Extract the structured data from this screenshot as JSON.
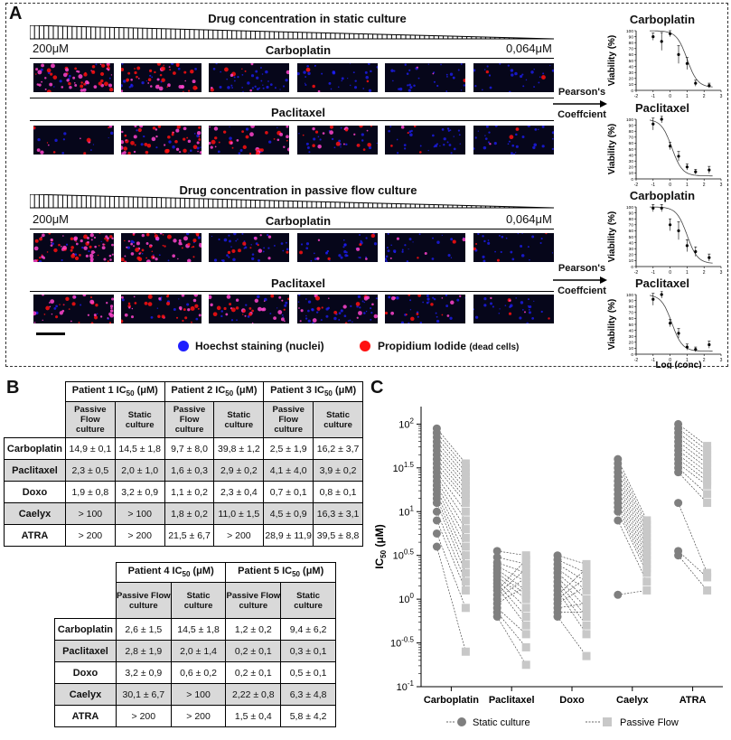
{
  "panel_a": {
    "letter": "A",
    "static_title": "Drug concentration in static culture",
    "flow_title": "Drug concentration in passive flow culture",
    "conc_high": "200μM",
    "conc_low": "0,064μM",
    "drug1": "Carboplatin",
    "drug2": "Paclitaxel",
    "arrow_label_1": "Pearson's",
    "arrow_label_2": "Coeffcient",
    "legend_hoechst": "Hoechst staining (nuclei)",
    "legend_pi_main": "Propidium Iodide",
    "legend_pi_sub": "(dead cells)",
    "colors": {
      "hoechst": "#1f1fff",
      "pi": "#ff1010"
    }
  },
  "mini_charts": [
    {
      "title": "Carboplatin",
      "ylabel": "Viability (%)",
      "xlabel": "",
      "points": [
        [
          -1,
          90
        ],
        [
          -0.5,
          82
        ],
        [
          0,
          95
        ],
        [
          0.5,
          60
        ],
        [
          1,
          45
        ],
        [
          1.5,
          12
        ],
        [
          2.3,
          8
        ]
      ],
      "errs": [
        6,
        15,
        5,
        15,
        10,
        5,
        4
      ],
      "ic50": 1.0
    },
    {
      "title": "Paclitaxel",
      "ylabel": "Viability (%)",
      "xlabel": "",
      "points": [
        [
          -1,
          92
        ],
        [
          -0.5,
          100
        ],
        [
          0,
          55
        ],
        [
          0.5,
          38
        ],
        [
          1,
          20
        ],
        [
          1.5,
          12
        ],
        [
          2.3,
          15
        ]
      ],
      "errs": [
        10,
        6,
        6,
        8,
        5,
        4,
        6
      ],
      "ic50": 0.1
    },
    {
      "title": "Carboplatin",
      "ylabel": "Viability (%)",
      "xlabel": "",
      "points": [
        [
          -1,
          98
        ],
        [
          -0.5,
          98
        ],
        [
          0,
          70
        ],
        [
          0.5,
          60
        ],
        [
          1,
          35
        ],
        [
          1.5,
          25
        ],
        [
          2.3,
          15
        ]
      ],
      "errs": [
        6,
        6,
        10,
        15,
        10,
        8,
        6
      ],
      "ic50": 1.0
    },
    {
      "title": "Paclitaxel",
      "ylabel": "Viability (%)",
      "xlabel": "Log (conc)",
      "points": [
        [
          -1,
          92
        ],
        [
          -0.5,
          100
        ],
        [
          0,
          52
        ],
        [
          0.5,
          35
        ],
        [
          1,
          12
        ],
        [
          1.5,
          8
        ],
        [
          2.3,
          16
        ]
      ],
      "errs": [
        10,
        6,
        6,
        8,
        5,
        4,
        6
      ],
      "ic50": 0.1
    }
  ],
  "mini_axis": {
    "yticks": [
      "0",
      "10",
      "20",
      "30",
      "40",
      "50",
      "60",
      "70",
      "80",
      "90",
      "100"
    ],
    "xticks": [
      "-2",
      "-1",
      "0",
      "1",
      "2",
      "3"
    ]
  },
  "panel_b": {
    "letter": "B",
    "sub_passive": "Passive Flow culture",
    "sub_static": "Static culture",
    "table1": {
      "headers": [
        "Patient 1 IC",
        "Patient 2 IC",
        "Patient 3 IC"
      ],
      "header_sub": "50",
      "header_unit": " (μM)",
      "rows": [
        {
          "drug": "Carboplatin",
          "cells": [
            "14,9 ± 0,1",
            "14,5 ± 1,8",
            "9,7 ± 8,0",
            "39,8 ± 1,2",
            "2,5 ± 1,9",
            "16,2 ± 3,7"
          ]
        },
        {
          "drug": "Paclitaxel",
          "cells": [
            "2,3 ± 0,5",
            "2,0 ± 1,0",
            "1,6 ± 0,3",
            "2,9 ± 0,2",
            "4,1 ± 4,0",
            "3,9 ± 0,2"
          ]
        },
        {
          "drug": "Doxo",
          "cells": [
            "1,9 ± 0,8",
            "3,2 ± 0,9",
            "1,1 ± 0,2",
            "2,3 ± 0,4",
            "0,7 ± 0,1",
            "0,8 ± 0,1"
          ]
        },
        {
          "drug": "Caelyx",
          "cells": [
            "> 100",
            "> 100",
            "1,8 ± 0,2",
            "11,0 ± 1,5",
            "4,5 ± 0,9",
            "16,3 ± 3,1"
          ]
        },
        {
          "drug": "ATRA",
          "cells": [
            "> 200",
            "> 200",
            "21,5 ± 6,7",
            "> 200",
            "28,9 ± 11,9",
            "39,5 ± 8,8"
          ]
        }
      ]
    },
    "table2": {
      "headers": [
        "Patient 4 IC",
        "Patient 5 IC"
      ],
      "rows": [
        {
          "drug": "Carboplatin",
          "cells": [
            "2,6 ± 1,5",
            "14,5 ± 1,8",
            "1,2 ± 0,2",
            "9,4 ± 6,2"
          ]
        },
        {
          "drug": "Paclitaxel",
          "cells": [
            "2,8 ± 1,9",
            "2,0 ± 1,4",
            "0,2 ± 0,1",
            "0,3 ± 0,1"
          ]
        },
        {
          "drug": "Doxo",
          "cells": [
            "3,2 ± 0,9",
            "0,6 ± 0,2",
            "0,2 ± 0,1",
            "0,5 ± 0,1"
          ]
        },
        {
          "drug": "Caelyx",
          "cells": [
            "30,1 ± 6,7",
            "> 100",
            "2,22 ± 0,8",
            "6,3 ± 4,8"
          ]
        },
        {
          "drug": "ATRA",
          "cells": [
            "> 200",
            "> 200",
            "1,5 ± 0,4",
            "5,8 ± 4,2"
          ]
        }
      ]
    }
  },
  "chart_data": {
    "type": "scatter",
    "letter": "C",
    "ylabel_main": "IC",
    "ylabel_sub": "50",
    "ylabel_unit": " (μM)",
    "yscale": "log",
    "ylim_log": [
      -1,
      2.2
    ],
    "ytick_base": "10",
    "yticks": [
      {
        "exp": "-1",
        "v": -1
      },
      {
        "exp": "-0.5",
        "v": -0.5
      },
      {
        "exp": "0",
        "v": 0
      },
      {
        "exp": "0.5",
        "v": 0.5
      },
      {
        "exp": "1",
        "v": 1
      },
      {
        "exp": "1.5",
        "v": 1.5
      },
      {
        "exp": "2",
        "v": 2
      }
    ],
    "categories": [
      "Carboplatin",
      "Paclitaxel",
      "Doxo",
      "Caelyx",
      "ATRA"
    ],
    "series": [
      {
        "name": "Static culture",
        "color": "#7f7f7f",
        "marker": "circle",
        "log_values": [
          [
            1.95,
            1.9,
            1.85,
            1.8,
            1.75,
            1.7,
            1.65,
            1.6,
            1.55,
            1.5,
            1.45,
            1.4,
            1.35,
            1.3,
            1.25,
            1.2,
            1.15,
            1.1,
            1.0,
            0.9,
            0.75,
            0.6
          ],
          [
            0.55,
            0.48,
            0.42,
            0.38,
            0.34,
            0.3,
            0.26,
            0.22,
            0.18,
            0.14,
            0.1,
            0.05,
            0.0,
            -0.05,
            -0.1,
            -0.15,
            -0.2
          ],
          [
            0.5,
            0.45,
            0.4,
            0.35,
            0.3,
            0.25,
            0.2,
            0.15,
            0.1,
            0.05,
            0.0,
            -0.05,
            -0.1,
            -0.15,
            -0.2
          ],
          [
            1.6,
            1.55,
            1.5,
            1.45,
            1.4,
            1.35,
            1.3,
            1.25,
            1.2,
            1.15,
            1.1,
            1.05,
            1.0,
            0.9,
            0.05
          ],
          [
            2.0,
            1.95,
            1.9,
            1.85,
            1.8,
            1.75,
            1.7,
            1.65,
            1.6,
            1.55,
            1.5,
            1.45,
            1.1,
            0.55,
            0.5
          ]
        ]
      },
      {
        "name": "Passive Flow",
        "color": "#c8c8c8",
        "marker": "square",
        "log_values": [
          [
            1.55,
            1.5,
            1.45,
            1.4,
            1.35,
            1.3,
            1.25,
            1.2,
            1.15,
            1.1,
            1.0,
            0.9,
            0.8,
            0.7,
            0.6,
            0.5,
            0.4,
            0.3,
            0.2,
            0.1,
            -0.1,
            -0.6
          ],
          [
            0.5,
            0.4,
            0.3,
            0.2,
            0.1,
            0.05,
            0.0,
            -0.1,
            -0.2,
            -0.3,
            0.45,
            0.35,
            0.25,
            0.15,
            -0.4,
            -0.55,
            -0.75
          ],
          [
            0.4,
            0.3,
            0.2,
            0.1,
            0.0,
            -0.1,
            -0.2,
            -0.3,
            -0.4,
            0.35,
            0.25,
            0.15,
            -0.05,
            -0.15,
            -0.65
          ],
          [
            0.9,
            0.85,
            0.8,
            0.75,
            0.7,
            0.65,
            0.6,
            0.55,
            0.5,
            0.45,
            0.4,
            0.35,
            0.3,
            0.2,
            0.1
          ],
          [
            1.75,
            1.7,
            1.65,
            1.6,
            1.55,
            1.5,
            1.45,
            1.4,
            1.35,
            1.3,
            1.2,
            1.1,
            0.3,
            0.25,
            0.1
          ]
        ]
      }
    ],
    "legend": [
      "Static culture",
      "Passive Flow"
    ]
  }
}
